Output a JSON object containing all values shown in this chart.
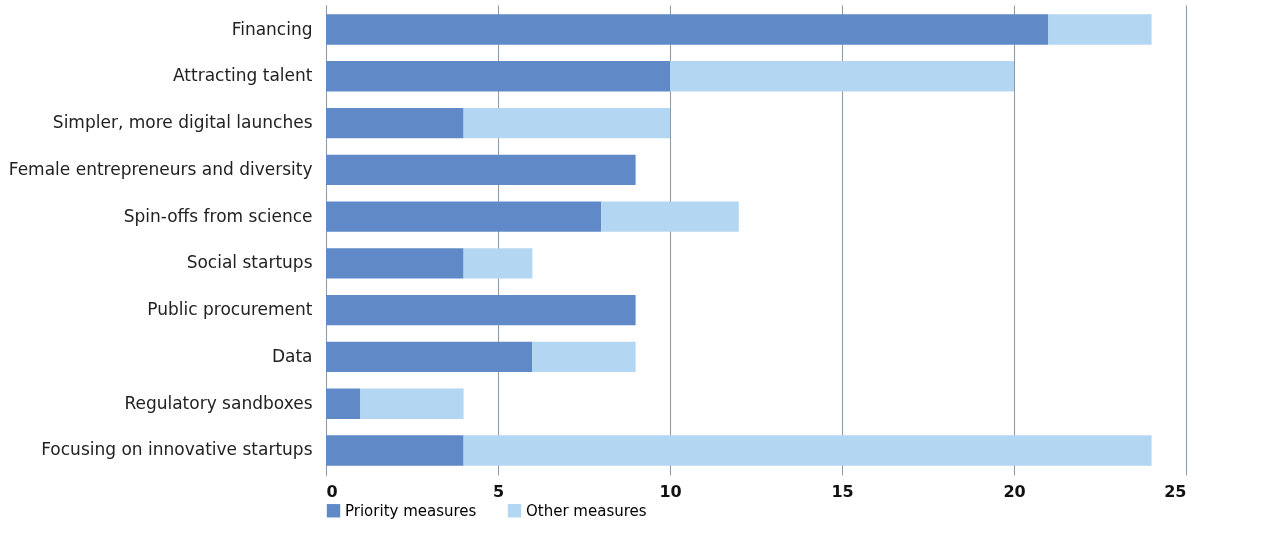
{
  "chart_data": {
    "type": "bar",
    "orientation": "horizontal",
    "stacked": true,
    "categories": [
      "Financing",
      "Attracting talent",
      "Simpler, more digital launches",
      "Female entrepreneurs and diversity",
      "Spin-offs from science",
      "Social startups",
      "Public procurement",
      "Data",
      "Regulatory sandboxes",
      "Focusing on innovative startups"
    ],
    "series": [
      {
        "name": "Priority measures",
        "color": "#5f8ac7",
        "values": [
          21,
          10,
          4,
          9,
          8,
          4,
          9,
          6,
          1,
          4
        ]
      },
      {
        "name": "Other measures",
        "color": "#b3d6f2",
        "values": [
          3,
          10,
          6,
          0,
          4,
          2,
          0,
          3,
          3,
          20
        ]
      }
    ],
    "xlim": [
      0,
      25
    ],
    "xticks": [
      0,
      5,
      10,
      15,
      20,
      25
    ],
    "grid": "x",
    "legend": "bottom left"
  }
}
